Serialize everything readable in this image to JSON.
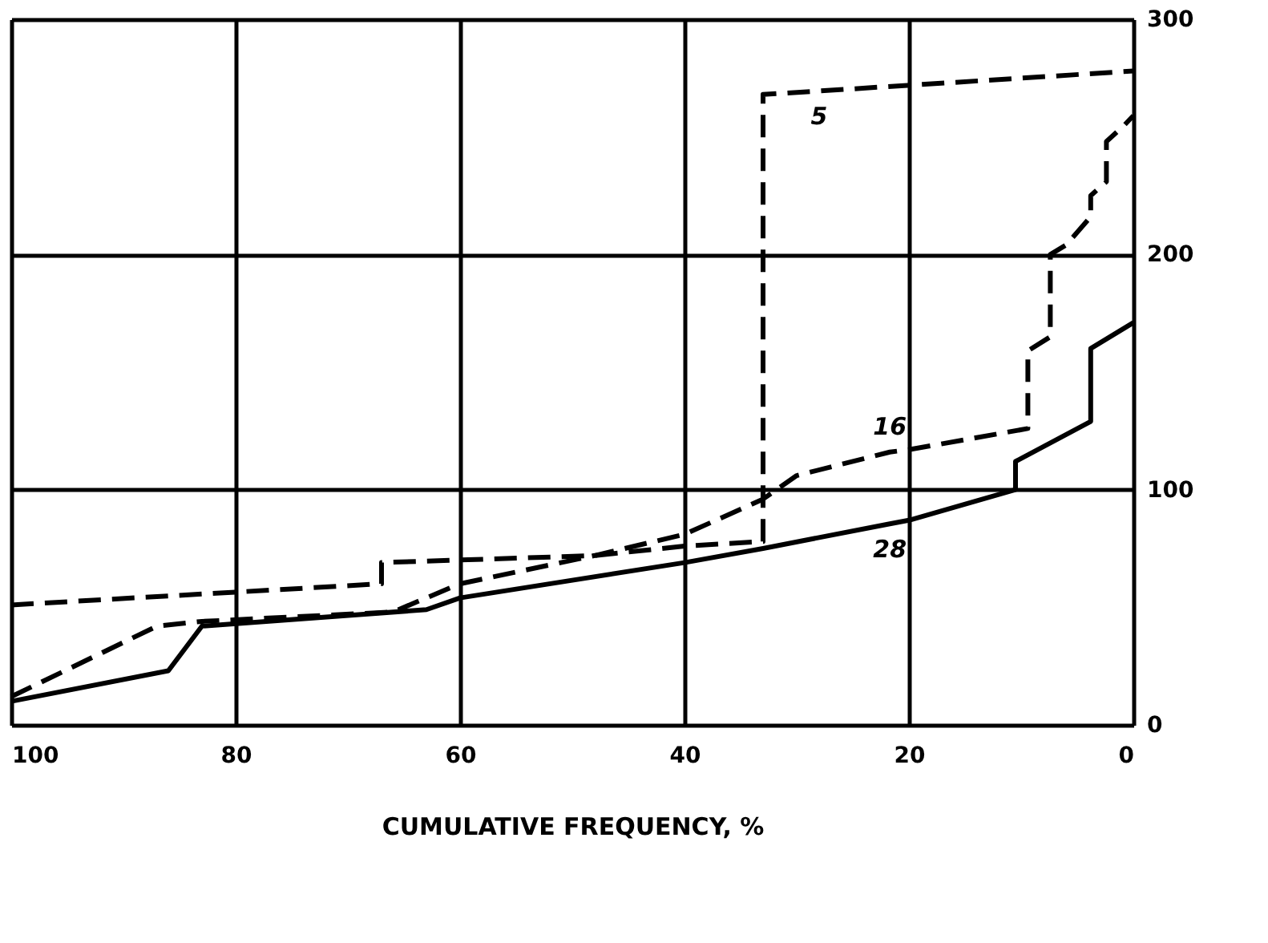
{
  "chart_data": {
    "type": "line",
    "xlabel": "CUMULATIVE FREQUENCY, %",
    "xlim": [
      100,
      0
    ],
    "xticks": [
      100,
      80,
      60,
      40,
      20,
      0
    ],
    "ylim": [
      0,
      300
    ],
    "yticks": [
      0,
      100,
      200,
      300
    ],
    "grid": true,
    "marker": "none",
    "series": [
      {
        "name": "5",
        "color": "#000000",
        "line_style": "dashed",
        "x": [
          100,
          67,
          67,
          48,
          40,
          33,
          33,
          28,
          0
        ],
        "values": [
          51,
          60,
          69,
          72,
          76,
          78,
          268,
          269.5,
          278
        ]
      },
      {
        "name": "16",
        "color": "#000000",
        "line_style": "dashed",
        "x": [
          100,
          87,
          83,
          66,
          60,
          48,
          40,
          33,
          30,
          21.7,
          20,
          9.4,
          9.4,
          7.4,
          7.4,
          6,
          3.8,
          3.8,
          2.4,
          2.4,
          0.8,
          0
        ],
        "values": [
          12,
          42,
          44,
          48,
          60,
          72,
          81,
          96,
          106,
          116,
          117,
          126,
          159,
          165,
          200,
          204,
          216,
          225,
          231,
          248,
          255,
          259
        ]
      },
      {
        "name": "28",
        "color": "#000000",
        "line_style": "solid",
        "x": [
          100,
          86,
          83,
          63,
          60,
          40,
          33,
          21.7,
          20,
          10.5,
          10.5,
          3.8,
          3.8,
          0
        ],
        "values": [
          10,
          23,
          42,
          49,
          54,
          69,
          75,
          85.5,
          87,
          100,
          112,
          129,
          160,
          171
        ]
      }
    ]
  }
}
